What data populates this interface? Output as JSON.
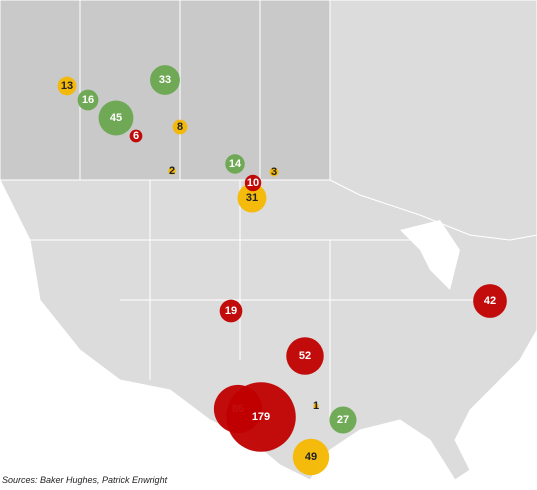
{
  "map": {
    "bubbles": [
      {
        "value": 13,
        "color": "#f5b800",
        "label_color": "#222222"
      },
      {
        "value": 16,
        "color": "#6aa84f",
        "label_color": "#ffffff"
      },
      {
        "value": 33,
        "color": "#6aa84f",
        "label_color": "#ffffff"
      },
      {
        "value": 45,
        "color": "#6aa84f",
        "label_color": "#ffffff"
      },
      {
        "value": 6,
        "color": "#c00000",
        "label_color": "#ffffff"
      },
      {
        "value": 8,
        "color": "#f5b800",
        "label_color": "#222222"
      },
      {
        "value": 2,
        "color": "#f5b800",
        "label_color": "#222222"
      },
      {
        "value": 14,
        "color": "#6aa84f",
        "label_color": "#ffffff"
      },
      {
        "value": 3,
        "color": "#f5b800",
        "label_color": "#222222"
      },
      {
        "value": 31,
        "color": "#f5b800",
        "label_color": "#222222"
      },
      {
        "value": 10,
        "color": "#c00000",
        "label_color": "#ffffff"
      },
      {
        "value": 19,
        "color": "#c00000",
        "label_color": "#ffffff"
      },
      {
        "value": 42,
        "color": "#c00000",
        "label_color": "#ffffff"
      },
      {
        "value": 52,
        "color": "#c00000",
        "label_color": "#ffffff"
      },
      {
        "value": 86,
        "color": "#c00000",
        "label_color": "#ffffff"
      },
      {
        "value": 179,
        "color": "#c00000",
        "label_color": "#ffffff"
      },
      {
        "value": 1,
        "color": "#f5b800",
        "label_color": "#222222"
      },
      {
        "value": 27,
        "color": "#6aa84f",
        "label_color": "#ffffff"
      },
      {
        "value": 49,
        "color": "#f5b800",
        "label_color": "#222222"
      }
    ]
  },
  "source": "Sources: Baker Hughes, Patrick Enwright"
}
